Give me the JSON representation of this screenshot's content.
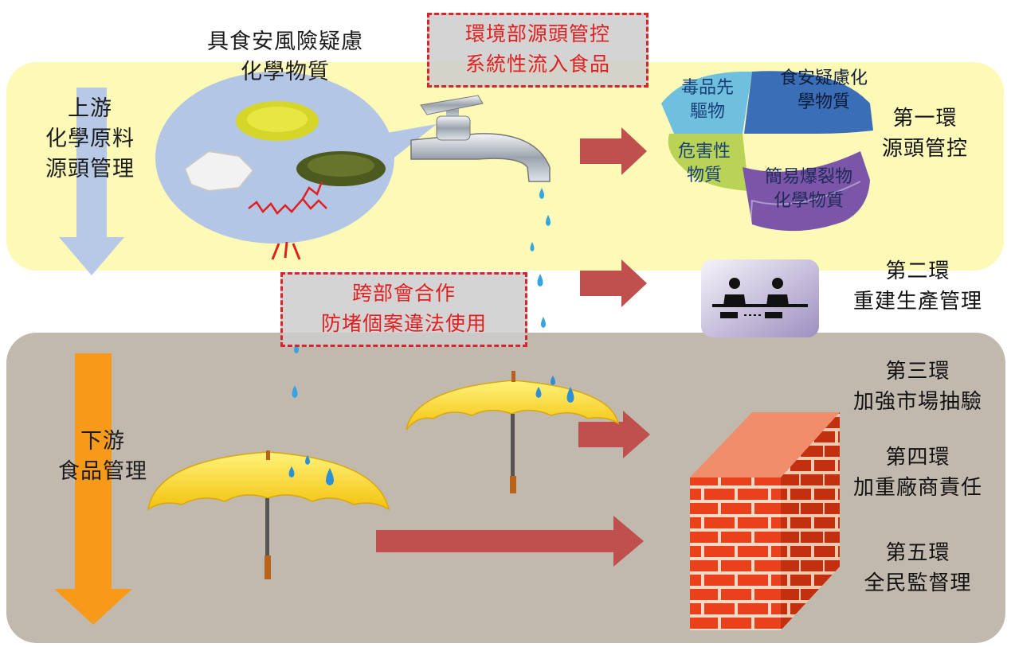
{
  "top_title_line1": "具食安風險疑慮",
  "top_title_line2": "化學物質",
  "env_dept_line1": "環境部源頭管控",
  "env_dept_line2": "系統性流入食品",
  "upstream_line1": "上游",
  "upstream_line2": "化學原料",
  "upstream_line3": "源頭管理",
  "downstream_line1": "下游",
  "downstream_line2": "食品管理",
  "cross_dept_line1": "跨部會合作",
  "cross_dept_line2": "防堵個案違法使用",
  "segments": {
    "drug_precursor_line1": "毒品先",
    "drug_precursor_line2": "驅物",
    "food_safety_line1": "食安疑慮化",
    "food_safety_line2": "學物質",
    "hazardous_line1": "危害性",
    "hazardous_line2": "物質",
    "explosive_line1": "簡易爆裂物",
    "explosive_line2": "化學物質"
  },
  "rings": [
    {
      "name": "第一環",
      "desc": "源頭管控"
    },
    {
      "name": "第二環",
      "desc": "重建生產管理"
    },
    {
      "name": "第三環",
      "desc": "加強市場抽驗"
    },
    {
      "name": "第四環",
      "desc": "加重廠商責任"
    },
    {
      "name": "第五環",
      "desc": "全民監督理"
    }
  ],
  "colors": {
    "top_panel": "#fdf9b6",
    "bottom_panel": "#c1b8ae",
    "accent_red": "#e02020",
    "arrow_red": "#c0504d",
    "upstream_arrow": "#b8c9e8",
    "downstream_arrow": "#f79a1a"
  }
}
